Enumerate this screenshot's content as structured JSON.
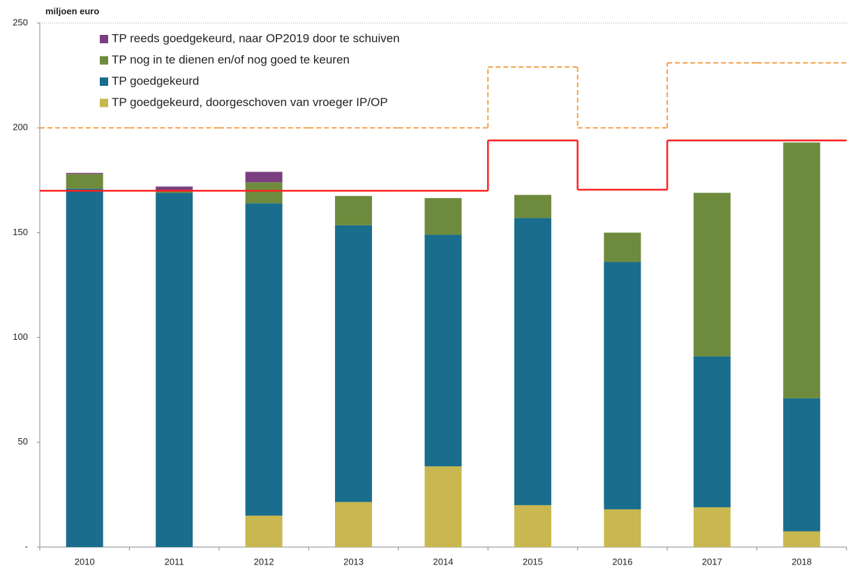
{
  "chart_data": {
    "type": "stacked-bar",
    "y_axis_label": "miljoen euro",
    "categories": [
      "2010",
      "2011",
      "2012",
      "2013",
      "2014",
      "2015",
      "2016",
      "2017",
      "2018"
    ],
    "series": [
      {
        "name": "TP reeds goedgekeurd, naar OP2019 door te schuiven",
        "color": "#7b3f7f",
        "values": [
          0.5,
          2,
          5,
          0,
          0,
          0,
          0,
          0,
          0
        ]
      },
      {
        "name": "TP nog in te dienen en/of nog goed te keuren",
        "color": "#6e8b3d",
        "values": [
          7,
          1,
          10,
          14,
          17.5,
          11,
          14,
          78,
          122
        ]
      },
      {
        "name": "TP goedgekeurd",
        "color": "#1a6d8c",
        "values": [
          171,
          169,
          149,
          132,
          110.5,
          137,
          118,
          72,
          63.5
        ]
      },
      {
        "name": "TP goedgekeurd, doorgeschoven van vroeger IP/OP",
        "color": "#c8b84f",
        "values": [
          0,
          0,
          15,
          21.5,
          38.5,
          20,
          18,
          19,
          7.5
        ]
      }
    ],
    "lines": [
      {
        "color": "#ff2020",
        "dashed": false,
        "values": [
          170,
          170,
          170,
          170,
          170,
          194,
          170.5,
          194,
          194
        ]
      },
      {
        "color": "#f5a04a",
        "dashed": true,
        "values": [
          200,
          200,
          200,
          200,
          200,
          229,
          200,
          231,
          231
        ]
      }
    ],
    "ylim": [
      0,
      250
    ],
    "yticks": [
      {
        "value": 0,
        "label": "-"
      },
      50,
      100,
      150,
      200,
      250
    ]
  }
}
